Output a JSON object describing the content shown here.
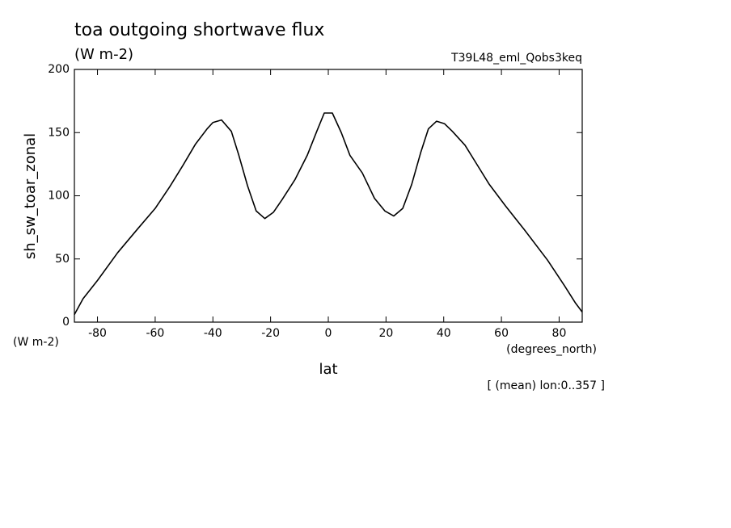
{
  "chart_data": {
    "type": "line",
    "title": "toa outgoing shortwave flux",
    "subtitle": "(W m-2)",
    "run_label": "T39L48_eml_Qobs3keq",
    "ylabel": "sh_sw_toar_zonal",
    "y_units": "(W m-2)",
    "xlabel": "lat",
    "x_units": "(degrees_north)",
    "footnote": "[ (mean) lon:0..357 ]",
    "x": [
      -88,
      -85,
      -80,
      -73,
      -66,
      -60,
      -55,
      -50.4,
      -46,
      -42,
      -40,
      -37,
      -33.6,
      -31,
      -28,
      -25,
      -22,
      -19,
      -16,
      -11.5,
      -7.3,
      -4,
      -1.4,
      1.4,
      4.5,
      7.5,
      11.8,
      16,
      19.6,
      22.7,
      25.8,
      28.9,
      32,
      34.7,
      37.5,
      40.3,
      43,
      47.4,
      52,
      55.8,
      61.4,
      68,
      76,
      81.8,
      85.7,
      88
    ],
    "series": [
      {
        "name": "sh_sw_toar_zonal",
        "color": "#000000",
        "values": [
          6,
          18.5,
          33,
          55,
          74,
          90,
          107,
          124,
          141,
          153,
          158,
          160,
          151,
          132,
          108,
          88,
          82,
          87,
          97,
          113,
          132,
          151,
          165.5,
          165.5,
          150,
          132,
          118,
          98,
          88,
          84,
          90,
          109,
          134,
          153,
          159,
          157,
          151,
          140,
          123,
          109,
          92,
          73,
          49,
          29,
          15,
          8
        ]
      }
    ],
    "xlim": [
      -88,
      88
    ],
    "ylim": [
      0,
      200
    ],
    "xticks": [
      -80,
      -60,
      -40,
      -20,
      0,
      20,
      40,
      60,
      80
    ],
    "yticks": [
      0,
      50,
      100,
      150,
      200
    ]
  }
}
